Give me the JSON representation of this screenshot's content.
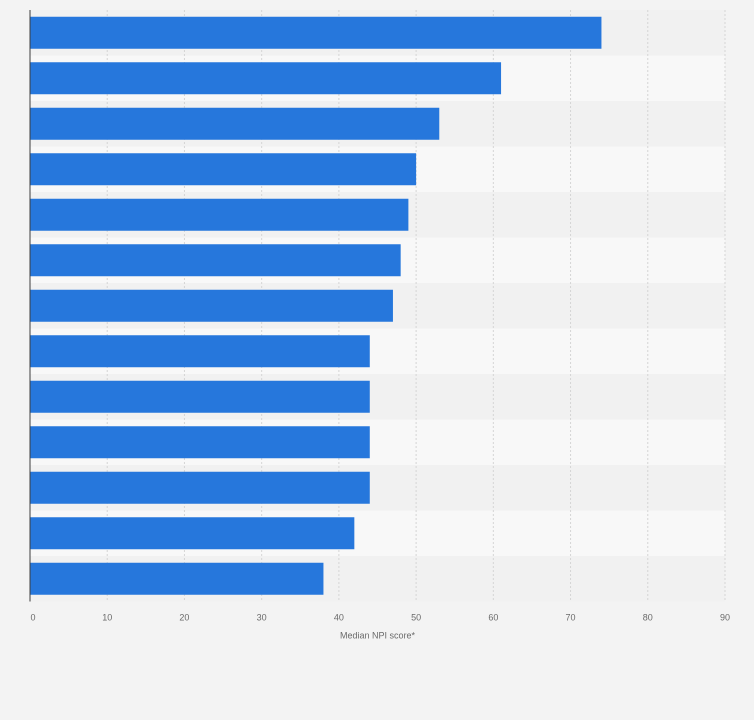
{
  "chart_data": {
    "type": "bar",
    "orientation": "horizontal",
    "title": "",
    "xlabel": "Median NPI score*",
    "ylabel": "",
    "xlim": [
      0,
      90
    ],
    "xticks": [
      0,
      10,
      20,
      30,
      40,
      50,
      60,
      70,
      80,
      90
    ],
    "grid": true,
    "categories": [
      "",
      "",
      "",
      "",
      "",
      "",
      "",
      "",
      "",
      "",
      "",
      "",
      ""
    ],
    "values": [
      74,
      61,
      53,
      50,
      49,
      48,
      47,
      44,
      44,
      44,
      44,
      42,
      38
    ],
    "colors": {
      "bar": "#2677dc",
      "background": "#f3f3f3",
      "band_light": "#f8f8f8",
      "band_dark": "#f1f1f1",
      "gridline": "#d5d5d5",
      "axis": "#3c3c3c",
      "text": "#6a6a6a"
    }
  }
}
